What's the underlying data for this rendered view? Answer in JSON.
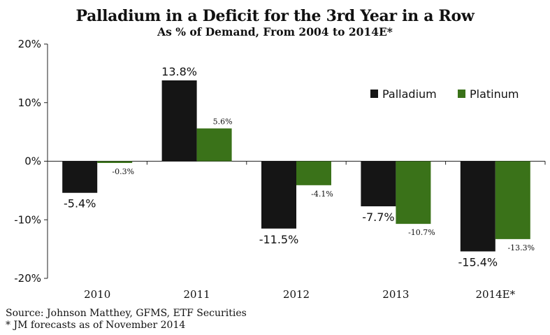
{
  "chart_data": {
    "type": "bar",
    "title": "Palladium in a Deficit for the 3rd Year in a Row",
    "subtitle": "As % of Demand, From 2004 to 2014E*",
    "categories": [
      "2010",
      "2011",
      "2012",
      "2013",
      "2014E*"
    ],
    "series": [
      {
        "name": "Palladium",
        "color": "#151515",
        "values": [
          -5.4,
          13.8,
          -11.5,
          -7.7,
          -15.4
        ],
        "labels": [
          "-5.4%",
          "13.8%",
          "-11.5%",
          "-7.7%",
          "-15.4%"
        ]
      },
      {
        "name": "Platinum",
        "color": "#3a7219",
        "values": [
          -0.3,
          5.6,
          -4.1,
          -10.7,
          -13.3
        ],
        "labels": [
          "-0.3%",
          "5.6%",
          "-4.1%",
          "-10.7%",
          "-13.3%"
        ]
      }
    ],
    "ylim": [
      -20,
      20
    ],
    "yticks": [
      20,
      10,
      0,
      -10,
      -20
    ],
    "ytick_labels": [
      "20%",
      "10%",
      "0%",
      "-10%",
      "-20%"
    ],
    "xlabel": "",
    "ylabel": "",
    "legend_position": "top-right",
    "grid": false
  },
  "footer": {
    "source": "Source: Johnson Matthey, GFMS, ETF Securities",
    "note": "* JM forecasts as of November 2014"
  }
}
